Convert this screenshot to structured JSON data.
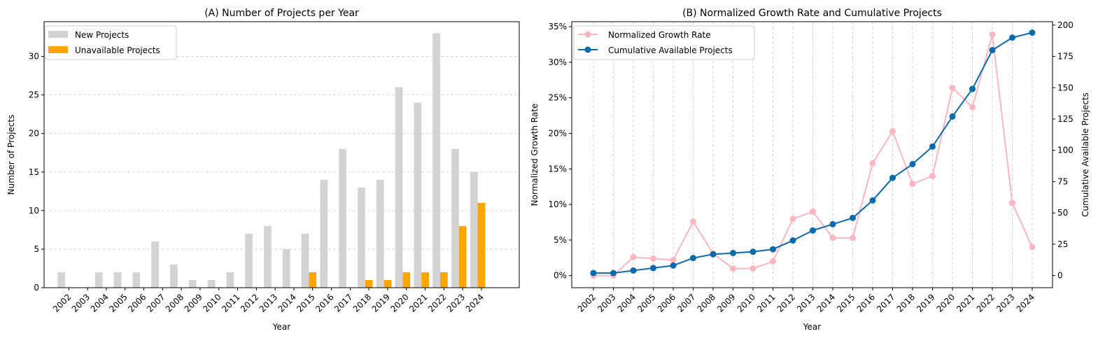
{
  "chart_data": [
    {
      "type": "bar",
      "title": "(A) Number of Projects per Year",
      "xlabel": "Year",
      "ylabel": "Number of Projects",
      "categories": [
        "2002",
        "2003",
        "2004",
        "2005",
        "2006",
        "2007",
        "2008",
        "2009",
        "2010",
        "2011",
        "2012",
        "2013",
        "2014",
        "2015",
        "2016",
        "2017",
        "2018",
        "2019",
        "2020",
        "2021",
        "2022",
        "2023",
        "2024"
      ],
      "ylim": [
        0,
        34.5
      ],
      "yticks": [
        0,
        5,
        10,
        15,
        20,
        25,
        30
      ],
      "grid": "y, dashed",
      "legend_position": "top-left",
      "series": [
        {
          "name": "New Projects",
          "color": "#d3d3d3",
          "values": [
            2,
            0,
            2,
            2,
            2,
            6,
            3,
            1,
            1,
            2,
            7,
            8,
            5,
            7,
            14,
            18,
            13,
            14,
            26,
            24,
            33,
            18,
            15
          ]
        },
        {
          "name": "Unavailable Projects",
          "color": "#ffa500",
          "values": [
            0,
            0,
            0,
            0,
            0,
            0,
            0,
            0,
            0,
            0,
            0,
            0,
            0,
            2,
            0,
            0,
            1,
            1,
            2,
            2,
            2,
            8,
            11
          ]
        }
      ]
    },
    {
      "type": "line",
      "title": "(B) Normalized Growth Rate and Cumulative Projects",
      "xlabel": "Year",
      "ylabel": "Normalized Growth Rate",
      "y2label": "Cumulative Available Projects",
      "x": [
        "2002",
        "2003",
        "2004",
        "2005",
        "2006",
        "2007",
        "2008",
        "2009",
        "2010",
        "2011",
        "2012",
        "2013",
        "2014",
        "2015",
        "2016",
        "2017",
        "2018",
        "2019",
        "2020",
        "2021",
        "2022",
        "2023",
        "2024"
      ],
      "ylim": [
        -1.7,
        35.7
      ],
      "yticks": [
        0,
        5,
        10,
        15,
        20,
        25,
        30,
        35
      ],
      "ytick_labels": [
        "0%",
        "5%",
        "10%",
        "15%",
        "20%",
        "25%",
        "30%",
        "35%"
      ],
      "y2lim": [
        -9.7,
        202.7
      ],
      "y2ticks": [
        0,
        25,
        50,
        75,
        100,
        125,
        150,
        175,
        200
      ],
      "grid": "x, dashed",
      "legend_position": "top-left",
      "series": [
        {
          "name": "Normalized Growth Rate",
          "axis": "left",
          "color": "#ffb6c1",
          "values": [
            0,
            0,
            2.6,
            2.4,
            2.2,
            7.6,
            3.1,
            1.0,
            1.0,
            2.0,
            8.0,
            9.0,
            5.3,
            5.3,
            15.8,
            20.3,
            12.9,
            14.0,
            26.4,
            23.7,
            33.9,
            10.2,
            4.0
          ]
        },
        {
          "name": "Cumulative Available Projects",
          "axis": "right",
          "color": "#0a6aab",
          "values": [
            2,
            2,
            4,
            6,
            8,
            14,
            17,
            18,
            19,
            21,
            28,
            36,
            41,
            46,
            60,
            78,
            89,
            103,
            127,
            149,
            180,
            190,
            194
          ]
        }
      ]
    }
  ]
}
